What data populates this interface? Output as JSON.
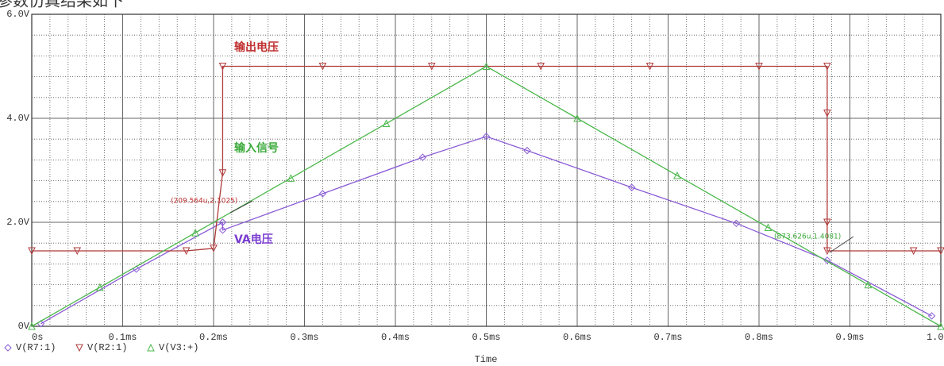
{
  "caption": "参数仿真结果如下",
  "chart_data": {
    "type": "line",
    "xlabel": "Time",
    "xlim": [
      0,
      1.0
    ],
    "xticks": [
      {
        "value": 0,
        "label": "0s"
      },
      {
        "value": 0.1,
        "label": "0.1ms"
      },
      {
        "value": 0.2,
        "label": "0.2ms"
      },
      {
        "value": 0.3,
        "label": "0.3ms"
      },
      {
        "value": 0.4,
        "label": "0.4ms"
      },
      {
        "value": 0.5,
        "label": "0.5ms"
      },
      {
        "value": 0.6,
        "label": "0.6ms"
      },
      {
        "value": 0.7,
        "label": "0.7ms"
      },
      {
        "value": 0.8,
        "label": "0.8ms"
      },
      {
        "value": 0.9,
        "label": "0.9ms"
      },
      {
        "value": 1.0,
        "label": "1.0ms"
      }
    ],
    "ylim": [
      0,
      6.0
    ],
    "yticks": [
      {
        "value": 0,
        "label": "0V"
      },
      {
        "value": 2.0,
        "label": "2.0V"
      },
      {
        "value": 4.0,
        "label": "4.0V"
      },
      {
        "value": 6.0,
        "label": "6.0V"
      }
    ],
    "grid": true,
    "series": [
      {
        "name": "V(R7:1)",
        "color": "#8a5cd6",
        "marker": "diamond",
        "x": [
          0.01,
          0.115,
          0.21,
          0.21,
          0.32,
          0.43,
          0.5,
          0.545,
          0.66,
          0.775,
          0.875,
          0.99
        ],
        "values": [
          0.05,
          1.1,
          2.0,
          1.85,
          2.55,
          3.25,
          3.65,
          3.38,
          2.67,
          1.98,
          1.27,
          0.2
        ]
      },
      {
        "name": "V(R2:1)",
        "color": "#b03a3a",
        "marker": "down",
        "x": [
          0,
          0.05,
          0.17,
          0.2,
          0.21,
          0.21,
          0.32,
          0.44,
          0.56,
          0.68,
          0.8,
          0.875,
          0.875,
          0.875,
          0.875,
          0.97,
          1.0
        ],
        "values": [
          1.45,
          1.45,
          1.45,
          1.5,
          2.95,
          5.0,
          5.0,
          5.0,
          5.0,
          5.0,
          5.0,
          5.0,
          4.1,
          2.0,
          1.45,
          1.45,
          1.45
        ]
      },
      {
        "name": "V(V3:+)",
        "color": "#4cb84c",
        "marker": "up",
        "x": [
          0,
          0.075,
          0.18,
          0.285,
          0.39,
          0.5,
          0.6,
          0.71,
          0.81,
          0.92,
          1.0
        ],
        "values": [
          0,
          0.75,
          1.8,
          2.85,
          3.9,
          5.0,
          4.0,
          2.9,
          1.9,
          0.8,
          0
        ]
      }
    ],
    "annotations": [
      {
        "text": "输出电压",
        "color": "#c03030"
      },
      {
        "text": "输入信号",
        "color": "#3aaa3a"
      },
      {
        "text": "VA电压",
        "color": "#7a3cd0"
      },
      {
        "text": "(209.564u,2.1025)",
        "color": "#c03030"
      },
      {
        "text": "(873.626u,1.4081)",
        "color": "#3aaa3a"
      }
    ]
  }
}
